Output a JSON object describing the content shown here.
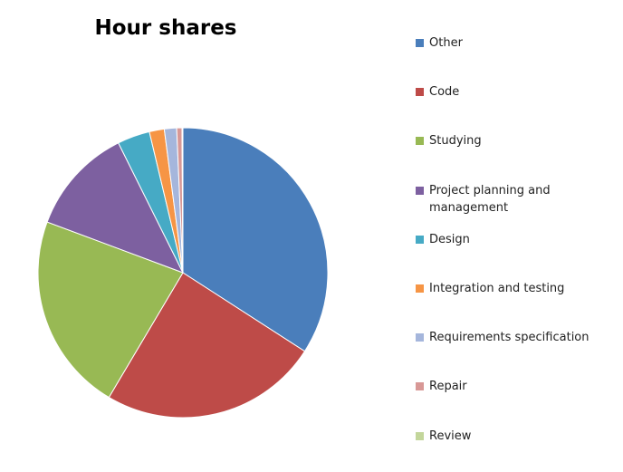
{
  "chart_data": {
    "type": "pie",
    "title": "Hour shares",
    "start": "12 o'clock, clockwise",
    "legend_position": "right",
    "slices": [
      {
        "name": "Other",
        "value": 34.8,
        "color": "#4A7EBB"
      },
      {
        "name": "Code",
        "value": 24.9,
        "color": "#BE4B48"
      },
      {
        "name": "Studying",
        "value": 22.6,
        "color": "#98B954"
      },
      {
        "name": "Project planning and management",
        "value": 12.2,
        "color": "#7D60A0"
      },
      {
        "name": "Design",
        "value": 3.7,
        "color": "#46AAC5"
      },
      {
        "name": "Integration and testing",
        "value": 1.7,
        "color": "#F69545"
      },
      {
        "name": "Requirements specification",
        "value": 1.4,
        "color": "#A5B6DC"
      },
      {
        "name": "Repair",
        "value": 0.6,
        "color": "#D89896"
      },
      {
        "name": "Review",
        "value": 0.1,
        "color": "#C3D69B"
      }
    ]
  }
}
